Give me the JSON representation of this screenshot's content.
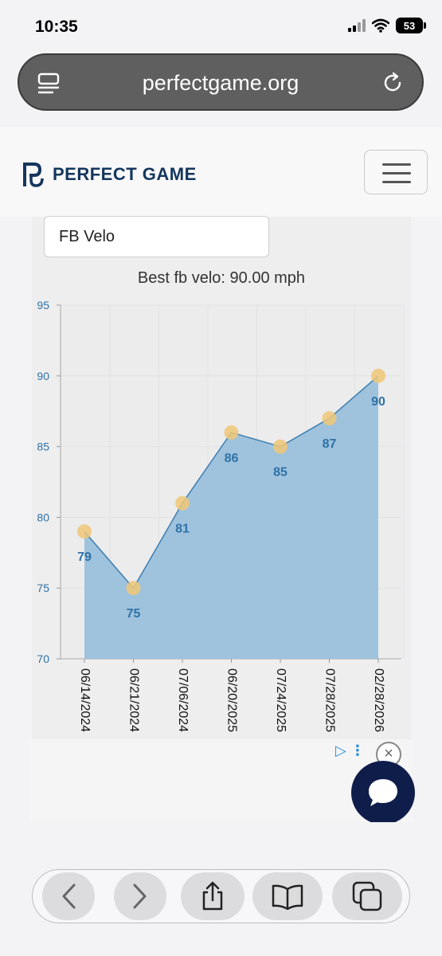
{
  "status": {
    "time": "10:35",
    "battery": "53"
  },
  "browser": {
    "url": "perfectgame.org"
  },
  "site": {
    "logo_text": "PERFECT GAME"
  },
  "filter": {
    "selected": "FB Velo"
  },
  "chart_title": "Best fb velo: 90.00 mph",
  "chart_data": {
    "type": "area",
    "title": "Best fb velo: 90.00 mph",
    "categories": [
      "06/14/2024",
      "06/21/2024",
      "07/06/2024",
      "06/20/2025",
      "07/24/2025",
      "07/28/2025",
      "02/28/2026"
    ],
    "series": [
      {
        "values": [
          79,
          75,
          81,
          86,
          85,
          87,
          90
        ]
      }
    ],
    "ylim": [
      70,
      95
    ],
    "yticks": [
      70,
      75,
      80,
      85,
      90,
      95
    ],
    "grid": true,
    "colors": {
      "area": "#9fc2dd",
      "line": "#3d7fb0",
      "marker": "#f0c877",
      "label": "#2e72a6",
      "ytick": "#2e72a6"
    }
  },
  "ad": {
    "info_icon": "adchoices-icon",
    "close_label": "×"
  },
  "toolbar": {
    "icons": [
      "back-icon",
      "forward-icon",
      "share-icon",
      "bookmarks-icon",
      "tabs-icon"
    ]
  }
}
